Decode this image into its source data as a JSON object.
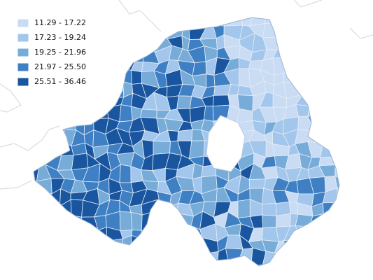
{
  "legend": {
    "items": [
      {
        "label": "11.29 - 17.22",
        "color": "#c9dcf3"
      },
      {
        "label": "17.23 - 19.24",
        "color": "#a3c6ec"
      },
      {
        "label": "19.25 - 21.96",
        "color": "#78acd8"
      },
      {
        "label": "21.97 - 25.50",
        "color": "#3f80c4"
      },
      {
        "label": "25.51 - 36.46",
        "color": "#1a569f"
      }
    ]
  }
}
